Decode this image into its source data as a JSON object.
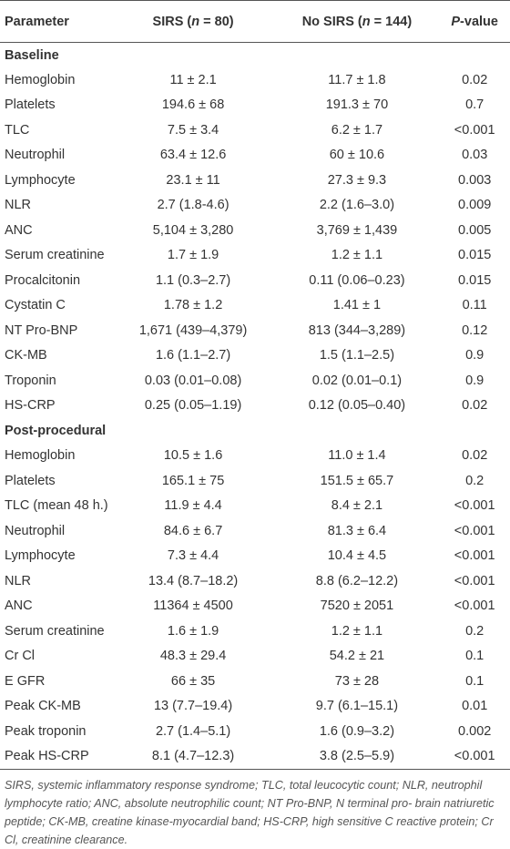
{
  "header": {
    "columns": [
      [
        "Parameter"
      ],
      [
        "SIRS (",
        "n",
        " = 80)"
      ],
      [
        "No SIRS (",
        "n",
        " = 144)"
      ],
      [
        "",
        "P",
        "-value"
      ]
    ]
  },
  "sections": [
    {
      "title": "Baseline",
      "rows": [
        [
          "Hemoglobin",
          "11 ± 2.1",
          "11.7 ± 1.8",
          "0.02"
        ],
        [
          "Platelets",
          "194.6 ± 68",
          "191.3 ± 70",
          "0.7"
        ],
        [
          "TLC",
          "7.5 ± 3.4",
          "6.2 ± 1.7",
          "<0.001"
        ],
        [
          "Neutrophil",
          "63.4 ± 12.6",
          "60 ± 10.6",
          "0.03"
        ],
        [
          "Lymphocyte",
          "23.1 ± 11",
          "27.3 ± 9.3",
          "0.003"
        ],
        [
          "NLR",
          "2.7 (1.8-4.6)",
          "2.2 (1.6–3.0)",
          "0.009"
        ],
        [
          "ANC",
          "5,104 ± 3,280",
          "3,769 ± 1,439",
          "0.005"
        ],
        [
          "Serum creatinine",
          "1.7 ± 1.9",
          "1.2 ± 1.1",
          "0.015"
        ],
        [
          "Procalcitonin",
          "1.1 (0.3–2.7)",
          "0.11 (0.06–0.23)",
          "0.015"
        ],
        [
          "Cystatin C",
          "1.78 ± 1.2",
          "1.41 ± 1",
          "0.11"
        ],
        [
          "NT Pro-BNP",
          "1,671 (439–4,379)",
          "813 (344–3,289)",
          "0.12"
        ],
        [
          "CK-MB",
          "1.6 (1.1–2.7)",
          "1.5 (1.1–2.5)",
          "0.9"
        ],
        [
          "Troponin",
          "0.03 (0.01–0.08)",
          "0.02 (0.01–0.1)",
          "0.9"
        ],
        [
          "HS-CRP",
          "0.25 (0.05–1.19)",
          "0.12 (0.05–0.40)",
          "0.02"
        ]
      ]
    },
    {
      "title": "Post-procedural",
      "rows": [
        [
          "Hemoglobin",
          "10.5 ± 1.6",
          "11.0 ± 1.4",
          "0.02"
        ],
        [
          "Platelets",
          "165.1 ± 75",
          "151.5 ± 65.7",
          "0.2"
        ],
        [
          "TLC (mean 48 h.)",
          "11.9 ± 4.4",
          "8.4 ± 2.1",
          "<0.001"
        ],
        [
          "Neutrophil",
          "84.6 ± 6.7",
          "81.3 ± 6.4",
          "<0.001"
        ],
        [
          "Lymphocyte",
          "7.3 ± 4.4",
          "10.4 ± 4.5",
          "<0.001"
        ],
        [
          "NLR",
          "13.4 (8.7–18.2)",
          "8.8 (6.2–12.2)",
          "<0.001"
        ],
        [
          "ANC",
          "11364 ± 4500",
          "7520 ± 2051",
          "<0.001"
        ],
        [
          "Serum creatinine",
          "1.6 ± 1.9",
          "1.2 ± 1.1",
          "0.2"
        ],
        [
          "Cr Cl",
          "48.3 ± 29.4",
          "54.2 ± 21",
          "0.1"
        ],
        [
          "E GFR",
          "66 ± 35",
          "73 ± 28",
          "0.1"
        ],
        [
          "Peak CK-MB",
          "13 (7.7–19.4)",
          "9.7 (6.1–15.1)",
          "0.01"
        ],
        [
          "Peak troponin",
          "2.7 (1.4–5.1)",
          "1.6 (0.9–3.2)",
          "0.002"
        ],
        [
          "Peak HS-CRP",
          "8.1 (4.7–12.3)",
          "3.8 (2.5–5.9)",
          "<0.001"
        ]
      ]
    }
  ],
  "footnote": "SIRS, systemic inflammatory response syndrome; TLC, total leucocytic count; NLR, neutrophil lymphocyte ratio; ANC, absolute neutrophilic count; NT Pro-BNP, N terminal pro- brain natriuretic peptide; CK-MB, creatine kinase-myocardial band; HS-CRP, high sensitive C reactive protein; Cr Cl, creatinine clearance."
}
